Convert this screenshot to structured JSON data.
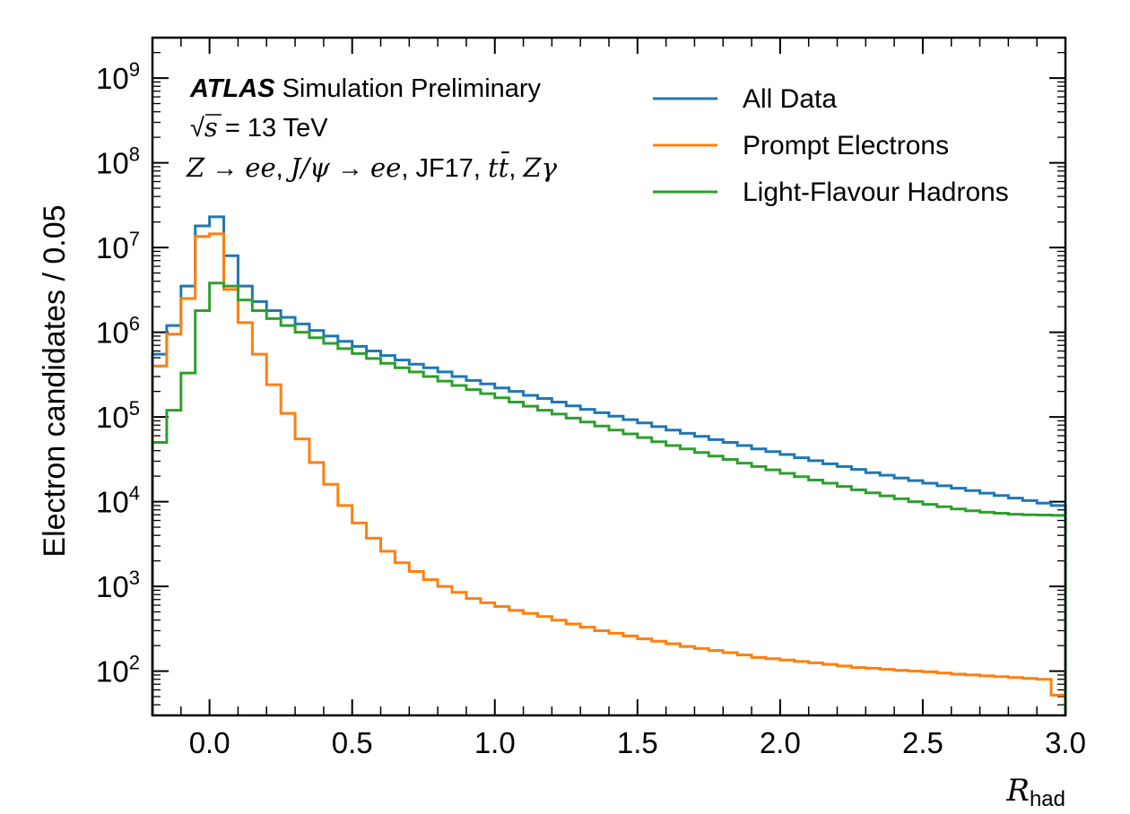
{
  "chart_data": {
    "type": "line",
    "step": true,
    "xlabel": "R",
    "xlabel_sub": "had",
    "ylabel": "Electron candidates / 0.05",
    "yscale": "log",
    "xlim": [
      -0.2,
      3.0
    ],
    "ylim": [
      30,
      3000000000
    ],
    "xticks": [
      0.0,
      0.5,
      1.0,
      1.5,
      2.0,
      2.5,
      3.0
    ],
    "xtick_labels": [
      "0.0",
      "0.5",
      "1.0",
      "1.5",
      "2.0",
      "2.5",
      "3.0"
    ],
    "ytick_exponents": [
      2,
      3,
      4,
      5,
      6,
      7,
      8,
      9
    ],
    "ytick_base": "10",
    "legend_position": "top-right",
    "annotations": {
      "atlas": "ATLAS",
      "atlas_suffix": " Simulation Preliminary",
      "energy_sqrt": "√",
      "energy_s": "s",
      "energy_rest": " = 13 TeV",
      "processes": [
        {
          "text": "Z",
          "math": true
        },
        {
          "text": " → ",
          "math": false
        },
        {
          "text": "ee",
          "math": true
        },
        {
          "text": ", ",
          "math": false
        },
        {
          "text": "J/ψ",
          "math": true
        },
        {
          "text": " → ",
          "math": false
        },
        {
          "text": "ee",
          "math": true
        },
        {
          "text": ", JF17, ",
          "math": false
        },
        {
          "text": "tt̄",
          "math": true
        },
        {
          "text": ", ",
          "math": false
        },
        {
          "text": "Zγ",
          "math": true
        }
      ]
    },
    "bin_edges": [
      -0.2,
      -0.15,
      -0.1,
      -0.05,
      0.0,
      0.05,
      0.1,
      0.15,
      0.2,
      0.25,
      0.3,
      0.35,
      0.4,
      0.45,
      0.5,
      0.55,
      0.6,
      0.65,
      0.7,
      0.75,
      0.8,
      0.85,
      0.9,
      0.95,
      1.0,
      1.05,
      1.1,
      1.15,
      1.2,
      1.25,
      1.3,
      1.35,
      1.4,
      1.45,
      1.5,
      1.55,
      1.6,
      1.65,
      1.7,
      1.75,
      1.8,
      1.85,
      1.9,
      1.95,
      2.0,
      2.05,
      2.1,
      2.15,
      2.2,
      2.25,
      2.3,
      2.35,
      2.4,
      2.45,
      2.5,
      2.55,
      2.6,
      2.65,
      2.7,
      2.75,
      2.8,
      2.85,
      2.9,
      2.95,
      3.0
    ],
    "series": [
      {
        "name": "All Data",
        "color": "#1f77b4",
        "values": [
          550000,
          1200000,
          3500000,
          18000000,
          23000000,
          8000000,
          3500000,
          2300000,
          1800000,
          1500000,
          1250000,
          1050000,
          900000,
          780000,
          680000,
          600000,
          530000,
          470000,
          420000,
          380000,
          340000,
          300000,
          270000,
          245000,
          220000,
          200000,
          180000,
          165000,
          150000,
          135000,
          123000,
          112000,
          102000,
          93000,
          85000,
          77000,
          70000,
          64000,
          59000,
          54000,
          50000,
          46000,
          42000,
          39000,
          36000,
          33000,
          30500,
          28000,
          26000,
          24000,
          22000,
          20500,
          19000,
          17700,
          16500,
          15400,
          14400,
          13500,
          12600,
          11800,
          11000,
          10300,
          9600,
          9000
        ]
      },
      {
        "name": "Prompt Electrons",
        "color": "#ff7f0e",
        "values": [
          400000,
          950000,
          2500000,
          13500000,
          14500000,
          3200000,
          1300000,
          550000,
          240000,
          110000,
          55000,
          29000,
          16000,
          9000,
          5600,
          3700,
          2600,
          1900,
          1500,
          1200,
          1000,
          850,
          720,
          640,
          580,
          520,
          480,
          440,
          400,
          360,
          330,
          300,
          280,
          260,
          240,
          225,
          210,
          195,
          185,
          175,
          165,
          155,
          145,
          140,
          135,
          130,
          125,
          120,
          115,
          110,
          108,
          105,
          102,
          100,
          98,
          95,
          92,
          90,
          88,
          86,
          84,
          82,
          80,
          52
        ]
      },
      {
        "name": "Light-Flavour Hadrons",
        "color": "#2ca02c",
        "values": [
          50000,
          120000,
          330000,
          1800000,
          3800000,
          3500000,
          2400000,
          1800000,
          1450000,
          1200000,
          1000000,
          860000,
          740000,
          640000,
          560000,
          490000,
          430000,
          380000,
          340000,
          300000,
          265000,
          235000,
          210000,
          188000,
          168000,
          150000,
          134000,
          120000,
          108000,
          97000,
          87000,
          78000,
          70000,
          63000,
          57000,
          51000,
          46000,
          42000,
          38000,
          34500,
          31500,
          28500,
          26000,
          23700,
          21600,
          19700,
          18000,
          16500,
          15100,
          13800,
          12700,
          11700,
          10800,
          10000,
          9300,
          8700,
          8200,
          7800,
          7500,
          7300,
          7100,
          7000,
          6950,
          6900
        ]
      }
    ]
  }
}
